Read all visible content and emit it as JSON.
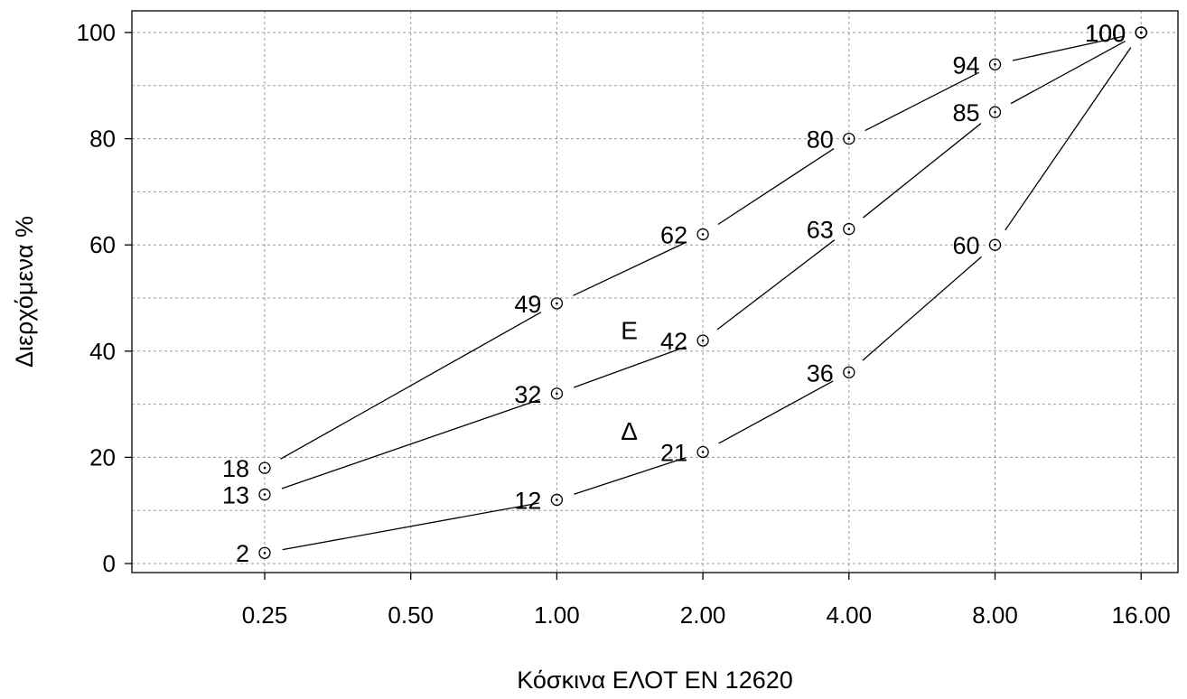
{
  "chart_data": {
    "type": "line",
    "xlabel": "Κόσκινα ΕΛΟΤ ΕΝ 12620",
    "ylabel": "Διερχόμενα %",
    "x_scale": "log2",
    "xlim": [
      0.125,
      16
    ],
    "ylim": [
      0,
      100
    ],
    "x_ticks": [
      "0.25",
      "0.50",
      "1.00",
      "2.00",
      "4.00",
      "8.00",
      "16.00"
    ],
    "y_ticks": [
      "0",
      "20",
      "40",
      "60",
      "80",
      "100"
    ],
    "grid": true,
    "series": [
      {
        "x": [
          0.25,
          1,
          2,
          4,
          8,
          16
        ],
        "values": [
          18,
          49,
          62,
          80,
          94,
          100
        ],
        "labels": [
          "18",
          "49",
          "62",
          "80",
          "94",
          "100"
        ],
        "color": "#000000"
      },
      {
        "x": [
          0.25,
          1,
          2,
          4,
          8,
          16
        ],
        "values": [
          13,
          32,
          42,
          63,
          85,
          100
        ],
        "labels": [
          "13",
          "32",
          "42",
          "63",
          "85",
          "100"
        ],
        "color": "#000000"
      },
      {
        "x": [
          0.25,
          1,
          2,
          4,
          8,
          16
        ],
        "values": [
          2,
          12,
          21,
          36,
          60,
          100
        ],
        "labels": [
          "2",
          "12",
          "21",
          "36",
          "60",
          "100"
        ],
        "color": "#000000"
      }
    ],
    "annotations": [
      {
        "text": "Ε",
        "x": 1.41,
        "y": 44
      },
      {
        "text": "Δ",
        "x": 1.41,
        "y": 25
      }
    ]
  }
}
